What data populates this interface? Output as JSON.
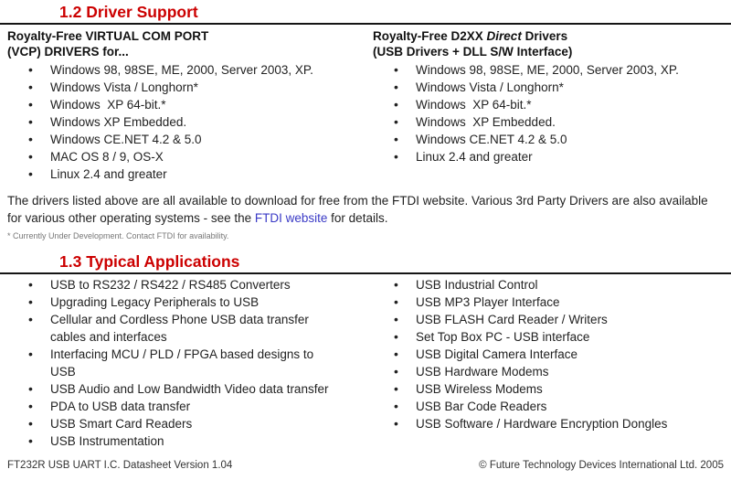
{
  "colors": {
    "heading_red": "#cc0000",
    "link_blue": "#3a3ac6",
    "rule_black": "#151515",
    "text_dark": "#222222",
    "footnote_gray": "#777777"
  },
  "driver_support": {
    "heading": "1.2 Driver Support",
    "columns": [
      {
        "title1_pre": "Royalty-Free VIRTUAL COM PORT",
        "title1_italic": "",
        "title1_post": "",
        "title2": "(VCP) DRIVERS for...",
        "items": [
          "Windows 98, 98SE, ME, 2000, Server 2003, XP.",
          "Windows Vista / Longhorn*",
          "Windows  XP 64-bit.*",
          "Windows XP Embedded.",
          "Windows CE.NET 4.2 & 5.0",
          "MAC OS 8 / 9, OS-X",
          "Linux 2.4 and greater"
        ]
      },
      {
        "title1_pre": "Royalty-Free D2XX ",
        "title1_italic": "Direct",
        "title1_post": " Drivers",
        "title2": "(USB Drivers + DLL S/W Interface)",
        "items": [
          "Windows 98, 98SE, ME, 2000, Server 2003, XP.",
          "Windows Vista / Longhorn*",
          "Windows  XP 64-bit.*",
          "Windows  XP Embedded.",
          "Windows CE.NET 4.2 & 5.0",
          "Linux 2.4 and greater"
        ]
      }
    ]
  },
  "drivers_note": {
    "text_before_link": "The drivers listed above are all available to download for free from the FTDI website. Various 3rd Party Drivers are also available for various other operating systems - see the ",
    "link_text": "FTDI website",
    "text_after_link": " for details.",
    "footnote": "* Currently Under Development. Contact FTDI for availability."
  },
  "typical_applications": {
    "heading": "1.3 Typical Applications",
    "columns": [
      {
        "items": [
          "USB to RS232 / RS422 / RS485 Converters",
          "Upgrading Legacy Peripherals to USB",
          "Cellular and Cordless Phone USB data transfer cables and interfaces",
          "Interfacing MCU / PLD / FPGA based designs to USB",
          "USB Audio and Low Bandwidth Video data transfer",
          "PDA to USB data transfer",
          "USB Smart Card Readers",
          "USB Instrumentation"
        ]
      },
      {
        "items": [
          "USB Industrial Control",
          "USB MP3 Player Interface",
          "USB FLASH Card Reader / Writers",
          "Set Top Box PC - USB interface",
          "USB Digital Camera Interface",
          "USB Hardware Modems",
          "USB Wireless Modems",
          "USB Bar Code Readers",
          "USB Software / Hardware Encryption Dongles"
        ]
      }
    ]
  },
  "footer": {
    "left": "FT232R USB UART I.C. Datasheet Version 1.04",
    "right": "© Future Technology Devices International Ltd. 2005"
  }
}
